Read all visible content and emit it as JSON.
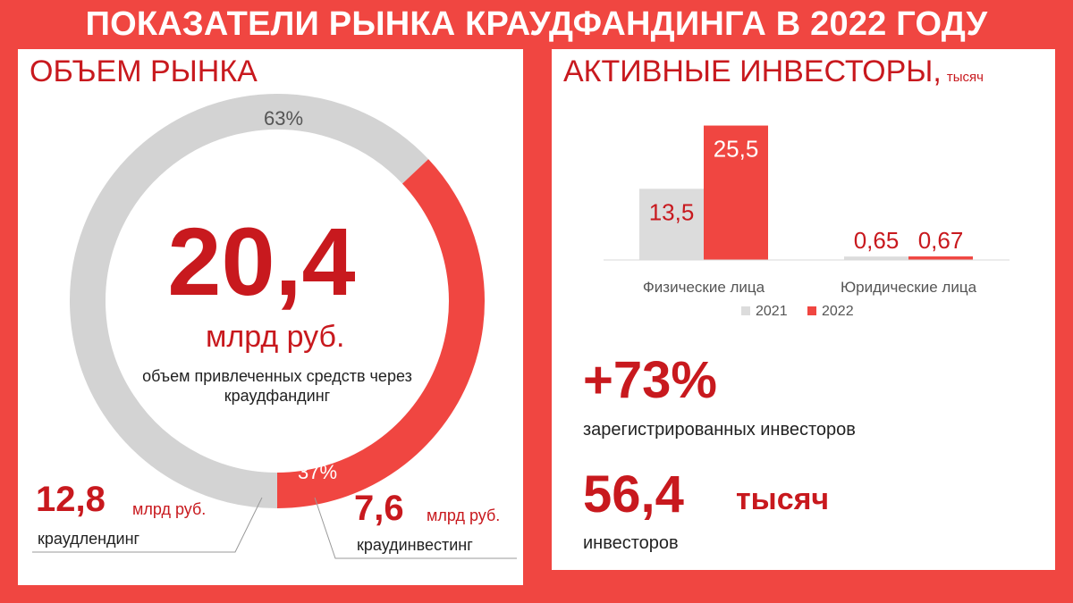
{
  "title": "ПОКАЗАТЕЛИ РЫНКА КРАУДФАНДИНГА В 2022 ГОДУ",
  "market": {
    "heading": "ОБЪЕМ РЫНКА",
    "total_value": "20,4",
    "total_unit": "млрд руб.",
    "total_description": "объем привлеченных средств через краудфандинг",
    "segments": [
      {
        "percent_label": "63%",
        "share": 0.63,
        "value": "12,8",
        "unit": "млрд руб.",
        "name": "краудлендинг",
        "color": "#d3d3d3"
      },
      {
        "percent_label": "37%",
        "share": 0.37,
        "value": "7,6",
        "unit": "млрд руб.",
        "name": "краудинвестинг",
        "color": "#f04641"
      }
    ]
  },
  "investors": {
    "heading": "АКТИВНЫЕ ИНВЕСТОРЫ,",
    "heading_unit": "тысяч",
    "growth_value": "+73%",
    "growth_text": "зарегистрированных инвесторов",
    "total_value": "56,4",
    "total_unit": "тысяч",
    "total_text": "инвесторов"
  },
  "chart_data": {
    "type": "bar",
    "categories": [
      "Физические лица",
      "Юридические лица"
    ],
    "series": [
      {
        "name": "2021",
        "values": [
          13.5,
          0.65
        ],
        "labels": [
          "13,5",
          "0,65"
        ],
        "color": "#dcdcdc"
      },
      {
        "name": "2022",
        "values": [
          25.5,
          0.67
        ],
        "labels": [
          "25,5",
          "0,67"
        ],
        "color": "#f04641"
      }
    ],
    "title": "АКТИВНЫЕ ИНВЕСТОРЫ, тысяч",
    "legend": "bottom",
    "grid": false
  }
}
